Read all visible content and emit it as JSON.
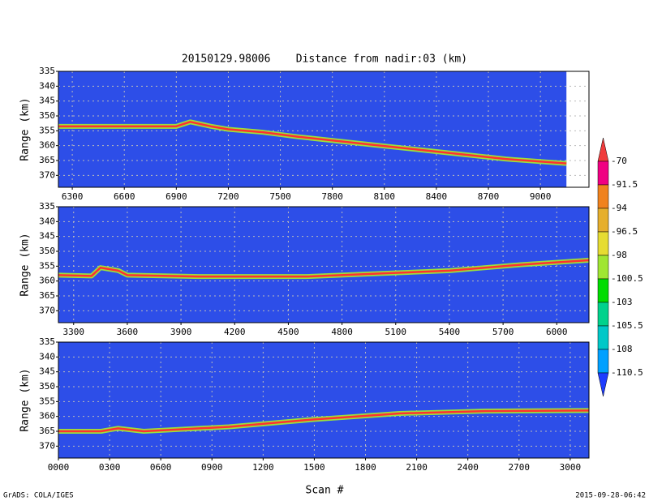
{
  "title": "20150129.98006    Distance from nadir:03 (km)",
  "x_label": "Scan #",
  "footer_left": "GrADS: COLA/IGES",
  "footer_right": "2015-09-28-06:42",
  "colorbar": {
    "levels": [
      -70,
      -91.5,
      -94,
      -96.5,
      -98,
      -100.5,
      -103,
      -105.5,
      -108,
      -110.5
    ],
    "colors": [
      "#f03c3c",
      "#f00082",
      "#f0821e",
      "#e6af2d",
      "#e6dc32",
      "#a0e632",
      "#00dc00",
      "#00d28c",
      "#00c8c8",
      "#00a0ff",
      "#1e3cff"
    ]
  },
  "chart_data": [
    {
      "type": "line",
      "y_label": "Range (km)",
      "background": "#2d4ee8",
      "color": "#ff3030",
      "grid": true,
      "invert_y": true,
      "x": [
        6220,
        6500,
        6900,
        6980,
        7100,
        7200,
        7400,
        7600,
        8000,
        8400,
        8800,
        9150
      ],
      "values": [
        353.5,
        353.5,
        353.5,
        352,
        353.5,
        354.5,
        355.5,
        357,
        359.5,
        362,
        364.5,
        366
      ],
      "xlim": [
        6220,
        9280
      ],
      "ylim": [
        335,
        374
      ],
      "xticks": [
        6300,
        6600,
        6900,
        7200,
        7500,
        7800,
        8100,
        8400,
        8700,
        9000
      ],
      "yticks": [
        335,
        340,
        345,
        350,
        355,
        360,
        365,
        370
      ]
    },
    {
      "type": "line",
      "y_label": "Range (km)",
      "background": "#2d4ee8",
      "color": "#ff3030",
      "grid": true,
      "invert_y": true,
      "x": [
        3215,
        3400,
        3450,
        3550,
        3600,
        4000,
        4600,
        5000,
        5400,
        5800,
        6180
      ],
      "values": [
        358,
        358.3,
        355.5,
        356.5,
        358,
        358.5,
        358.5,
        357.5,
        356.5,
        354.5,
        353
      ],
      "xlim": [
        3215,
        6180
      ],
      "ylim": [
        335,
        374
      ],
      "xticks": [
        3300,
        3600,
        3900,
        4200,
        4500,
        4800,
        5100,
        5400,
        5700,
        6000
      ],
      "yticks": [
        335,
        340,
        345,
        350,
        355,
        360,
        365,
        370
      ]
    },
    {
      "type": "line",
      "y_label": "Range (km)",
      "background": "#2d4ee8",
      "color": "#ff3030",
      "grid": true,
      "invert_y": true,
      "x": [
        0,
        250,
        350,
        500,
        1000,
        1500,
        2000,
        2500,
        3110
      ],
      "values": [
        365,
        365,
        364,
        365,
        363.5,
        361,
        359,
        358.2,
        358
      ],
      "xlim": [
        0,
        3110
      ],
      "ylim": [
        335,
        374
      ],
      "xticks": [
        {
          "value": 0,
          "label": "0000"
        },
        {
          "value": 300,
          "label": "0300"
        },
        {
          "value": 600,
          "label": "0600"
        },
        {
          "value": 900,
          "label": "0900"
        },
        1200,
        1500,
        1800,
        2100,
        2400,
        2700,
        3000
      ],
      "yticks": [
        335,
        340,
        345,
        350,
        355,
        360,
        365,
        370
      ]
    }
  ]
}
